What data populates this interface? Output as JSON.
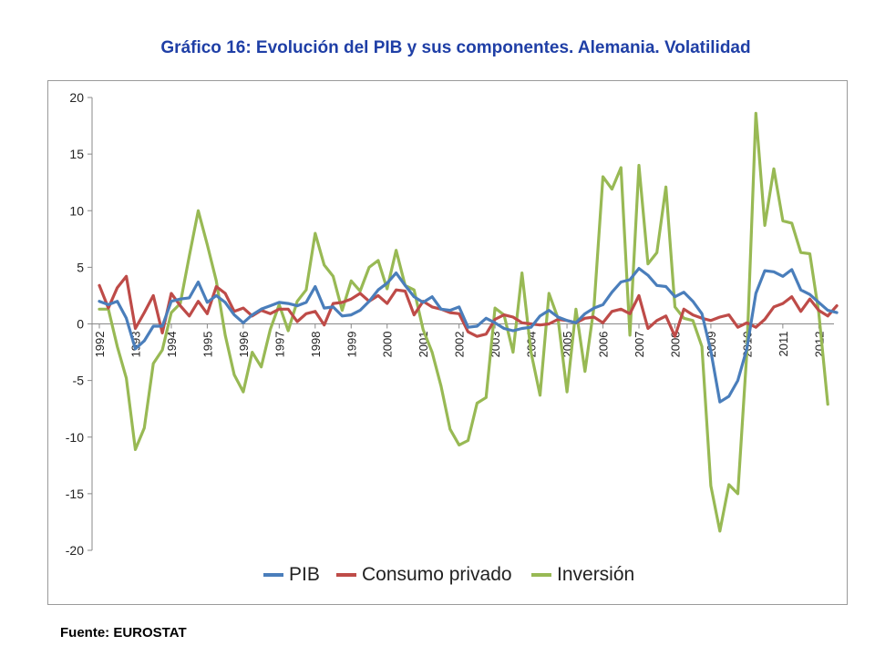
{
  "title": "Gráfico 16: Evolución del PIB y sus componentes. Alemania. Volatilidad",
  "source": "Fuente: EUROSTAT",
  "chart_data": {
    "type": "line",
    "ylim": [
      -20,
      20
    ],
    "y_ticks": [
      20,
      15,
      10,
      5,
      0,
      -5,
      -10,
      -15,
      -20
    ],
    "x_ticks": [
      "1992",
      "1993",
      "1994",
      "1995",
      "1996",
      "1997",
      "1998",
      "1999",
      "2000",
      "2001",
      "2002",
      "2003",
      "2004",
      "2005",
      "2006",
      "2007",
      "2008",
      "2009",
      "2010",
      "2011",
      "2012"
    ],
    "x_start_year": 1992,
    "points_per_year": 4,
    "grid": false,
    "legend_position": "bottom",
    "series": [
      {
        "name": "PIB",
        "color": "#4a7ebb",
        "values": [
          2.0,
          1.7,
          2.0,
          0.5,
          -2.2,
          -1.5,
          -0.2,
          -0.2,
          2.0,
          2.2,
          2.3,
          3.7,
          1.9,
          2.5,
          1.9,
          0.8,
          0.1,
          0.8,
          1.3,
          1.6,
          1.9,
          1.8,
          1.6,
          1.9,
          3.3,
          1.4,
          1.5,
          0.7,
          0.8,
          1.2,
          2.0,
          3.0,
          3.6,
          4.5,
          3.4,
          2.4,
          1.9,
          2.4,
          1.3,
          1.2,
          1.5,
          -0.3,
          -0.2,
          0.5,
          0.1,
          -0.4,
          -0.6,
          -0.4,
          -0.3,
          0.7,
          1.2,
          0.6,
          0.3,
          0.1,
          0.9,
          1.4,
          1.7,
          2.8,
          3.7,
          3.9,
          4.9,
          4.3,
          3.4,
          3.3,
          2.4,
          2.8,
          2.0,
          0.9,
          -2.4,
          -6.9,
          -6.4,
          -5.0,
          -2.2,
          2.7,
          4.7,
          4.6,
          4.2,
          4.8,
          3.0,
          2.6,
          1.9,
          1.2,
          1.0
        ]
      },
      {
        "name": "Consumo privado",
        "color": "#be4b48",
        "values": [
          3.4,
          1.4,
          3.2,
          4.2,
          -0.4,
          1.0,
          2.5,
          -0.8,
          2.7,
          1.6,
          0.7,
          2.0,
          0.9,
          3.3,
          2.7,
          1.1,
          1.4,
          0.7,
          1.2,
          0.9,
          1.3,
          1.3,
          0.2,
          0.9,
          1.1,
          -0.1,
          1.8,
          1.9,
          2.2,
          2.7,
          2.0,
          2.5,
          1.8,
          3.0,
          2.9,
          0.8,
          2.0,
          1.5,
          1.3,
          1.0,
          0.9,
          -0.7,
          -1.1,
          -0.9,
          0.4,
          0.8,
          0.6,
          0.1,
          0.0,
          -0.1,
          0.0,
          0.4,
          0.3,
          0.1,
          0.5,
          0.6,
          0.1,
          1.1,
          1.3,
          0.9,
          2.5,
          -0.4,
          0.3,
          0.7,
          -1.1,
          1.3,
          0.8,
          0.5,
          0.3,
          0.6,
          0.8,
          -0.3,
          0.1,
          -0.3,
          0.4,
          1.5,
          1.8,
          2.4,
          1.1,
          2.2,
          1.2,
          0.7,
          1.6
        ]
      },
      {
        "name": "Inversión",
        "color": "#98b954",
        "values": [
          1.3,
          1.3,
          -2.0,
          -4.8,
          -11.1,
          -9.2,
          -3.5,
          -2.3,
          1.0,
          1.8,
          6.0,
          10.0,
          7.0,
          3.8,
          -1.0,
          -4.5,
          -6.0,
          -2.5,
          -3.8,
          -0.5,
          1.7,
          -0.6,
          2.0,
          3.0,
          8.0,
          5.2,
          4.2,
          1.2,
          3.8,
          2.9,
          5.0,
          5.6,
          3.1,
          6.5,
          3.4,
          3.0,
          -0.5,
          -2.5,
          -5.5,
          -9.3,
          -10.7,
          -10.3,
          -7.0,
          -6.5,
          1.4,
          0.8,
          -2.5,
          4.5,
          -2.5,
          -6.3,
          2.7,
          0.5,
          -6.0,
          1.3,
          -4.2,
          1.5,
          13.0,
          11.9,
          13.8,
          -1.0,
          14.0,
          5.3,
          6.3,
          12.1,
          1.5,
          0.5,
          0.3,
          -2.0,
          -14.3,
          -18.3,
          -14.2,
          -15.0,
          -2.5,
          18.6,
          8.7,
          13.7,
          9.1,
          8.9,
          6.3,
          6.2,
          1.0,
          -7.1
        ]
      }
    ]
  }
}
